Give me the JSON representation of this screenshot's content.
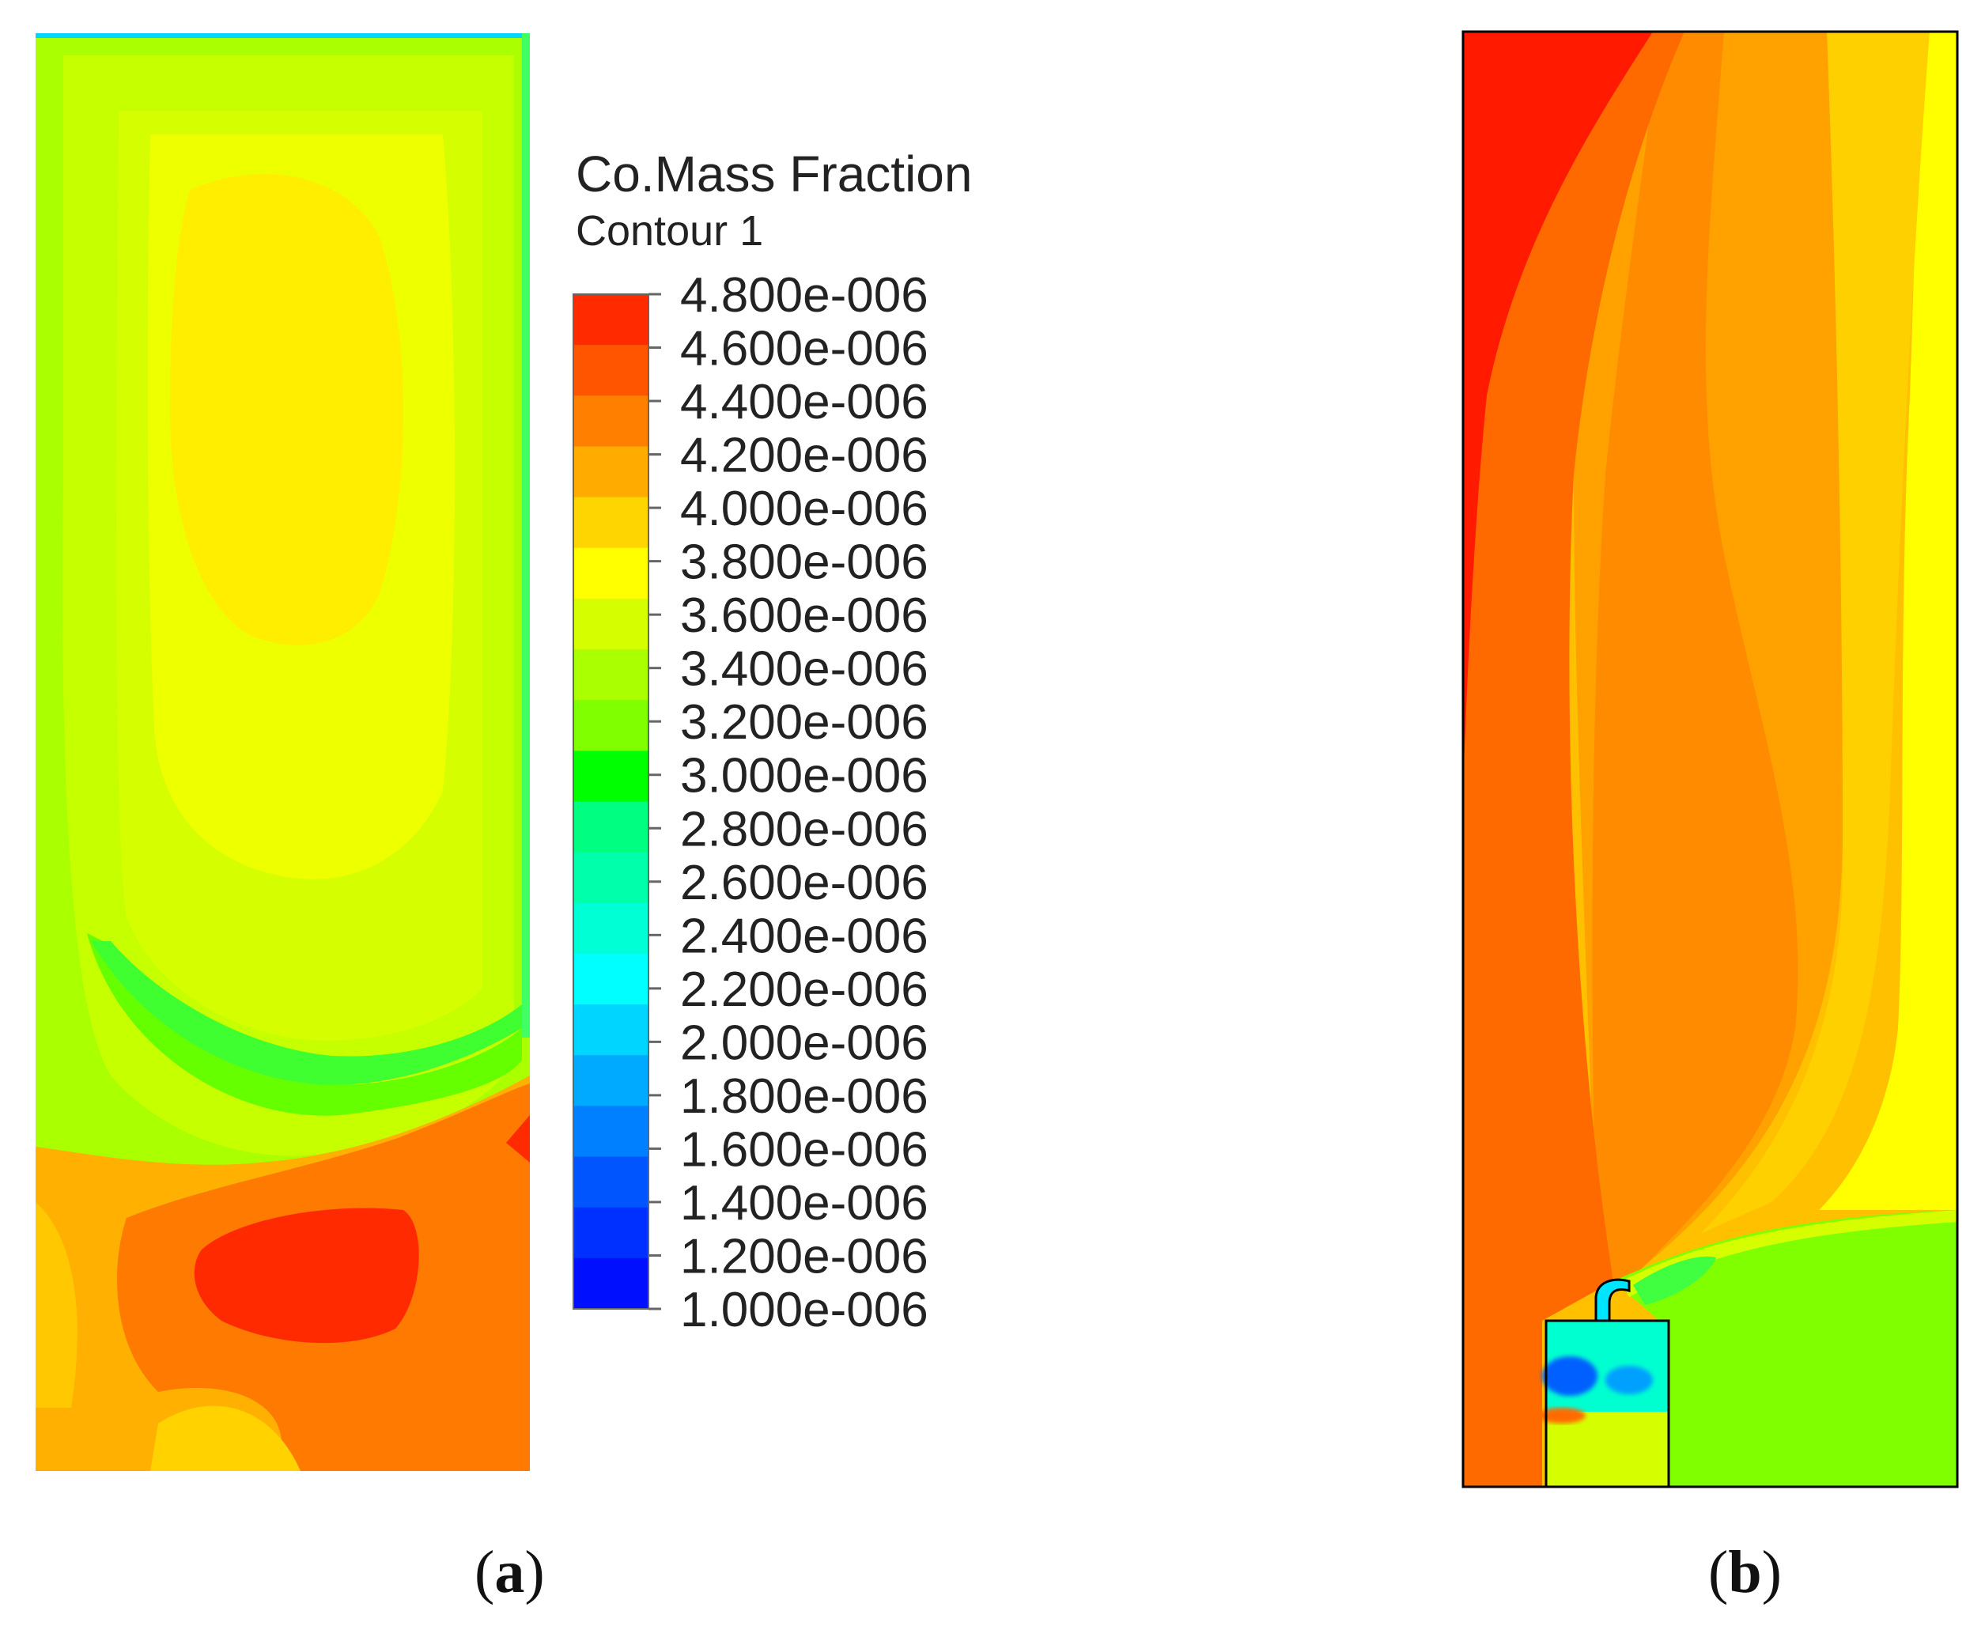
{
  "chart_data": [
    {
      "type": "contour",
      "panel": "a",
      "title": "Co.Mass Fraction",
      "subtitle": "Contour 1",
      "legend": {
        "labels": [
          "4.800e-006",
          "4.600e-006",
          "4.400e-006",
          "4.200e-006",
          "4.000e-006",
          "3.800e-006",
          "3.600e-006",
          "3.400e-006",
          "3.200e-006",
          "3.000e-006",
          "2.800e-006",
          "2.600e-006",
          "2.400e-006",
          "2.200e-006",
          "2.000e-006",
          "1.800e-006",
          "1.600e-006",
          "1.400e-006",
          "1.200e-006",
          "1.000e-006"
        ],
        "values": [
          4.8e-06,
          4.6e-06,
          4.4e-06,
          4.2e-06,
          4e-06,
          3.8e-06,
          3.6e-06,
          3.4e-06,
          3.2e-06,
          3e-06,
          2.8e-06,
          2.6e-06,
          2.4e-06,
          2.2e-06,
          2e-06,
          1.8e-06,
          1.6e-06,
          1.4e-06,
          1.2e-06,
          1e-06
        ],
        "colors": [
          "#ff2a00",
          "#ff5500",
          "#ff8000",
          "#ffab00",
          "#ffd500",
          "#ffff00",
          "#d5ff00",
          "#aaff00",
          "#80ff00",
          "#00ff00",
          "#00ff80",
          "#00ffaa",
          "#00ffd5",
          "#00ffff",
          "#00d5ff",
          "#00aaff",
          "#0080ff",
          "#0055ff",
          "#0030ff",
          "#0010ff"
        ]
      },
      "range": [
        1e-06,
        4.8e-06
      ]
    },
    {
      "type": "contour",
      "panel": "b",
      "range": [
        1e-06,
        4.8e-06
      ]
    }
  ],
  "labels": {
    "a": "a",
    "b": "b"
  },
  "colors": {
    "red": "#ff2a00",
    "redorange": "#ff6600",
    "orange": "#ff8c00",
    "lightorange": "#ffa600",
    "yelloworange": "#ffc000",
    "yellow": "#ffe600",
    "brightyellow": "#ffff00",
    "yellowgreen": "#d5ff00",
    "limegreen": "#aaff00",
    "green": "#80ff00",
    "pure_green": "#00ff00",
    "cyan": "#00ffff",
    "blue": "#0055ff"
  }
}
